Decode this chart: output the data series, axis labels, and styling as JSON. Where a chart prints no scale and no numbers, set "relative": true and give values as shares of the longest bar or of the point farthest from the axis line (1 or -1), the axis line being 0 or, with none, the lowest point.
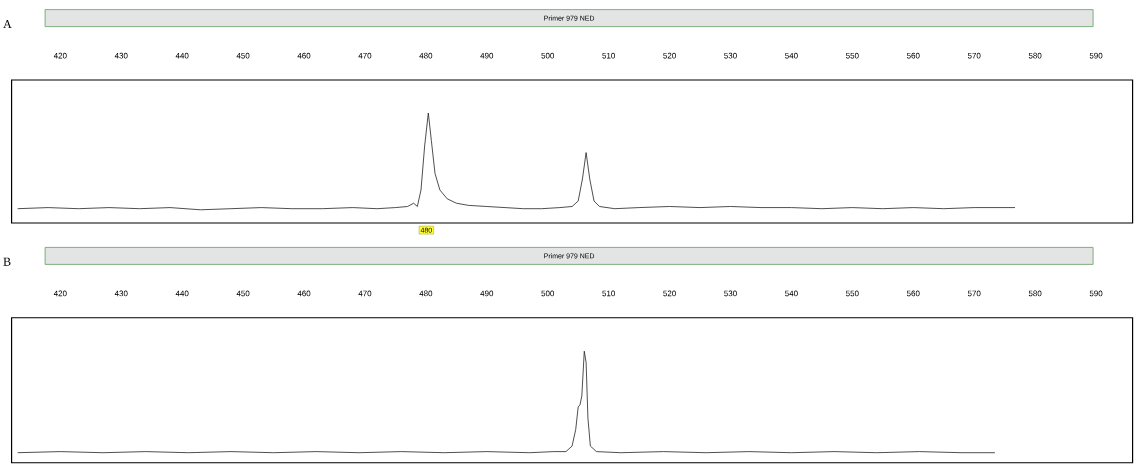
{
  "chart_data": [
    {
      "type": "line",
      "title": "Primer 979 NED",
      "relative": true,
      "xlim": [
        412,
        596
      ],
      "xticks": [
        420,
        430,
        440,
        450,
        460,
        470,
        480,
        490,
        500,
        510,
        520,
        530,
        540,
        550,
        560,
        570,
        580,
        590
      ],
      "annotations": [
        "A",
        "480"
      ],
      "series": [
        {
          "color": "#222222",
          "x": [
            413,
            418,
            423,
            428,
            433,
            438,
            443,
            448,
            453,
            458,
            463,
            468,
            472,
            475,
            477,
            478,
            478.6,
            479.2,
            479.8,
            480.4,
            480.9,
            481.5,
            482.3,
            483.5,
            485,
            487,
            490,
            493,
            496,
            499,
            502,
            504,
            505,
            505.7,
            506.3,
            506.9,
            507.6,
            508.5,
            511,
            515,
            520,
            525,
            530,
            535,
            540,
            545,
            550,
            555,
            560,
            565,
            570,
            576.7
          ],
          "values": [
            0.13,
            0.14,
            0.13,
            0.14,
            0.13,
            0.14,
            0.12,
            0.13,
            0.14,
            0.13,
            0.13,
            0.14,
            0.13,
            0.14,
            0.15,
            0.18,
            0.15,
            0.3,
            0.7,
            1.0,
            0.75,
            0.45,
            0.3,
            0.22,
            0.18,
            0.16,
            0.15,
            0.14,
            0.13,
            0.13,
            0.14,
            0.15,
            0.2,
            0.4,
            0.64,
            0.4,
            0.2,
            0.15,
            0.13,
            0.14,
            0.15,
            0.14,
            0.15,
            0.14,
            0.14,
            0.13,
            0.14,
            0.13,
            0.14,
            0.13,
            0.14,
            0.14
          ]
        }
      ]
    },
    {
      "type": "line",
      "title": "Primer 979 NED",
      "relative": true,
      "xlim": [
        412,
        596
      ],
      "xticks": [
        420,
        430,
        440,
        450,
        460,
        470,
        480,
        490,
        500,
        510,
        520,
        530,
        540,
        550,
        560,
        570,
        580,
        590
      ],
      "annotations": [
        "B"
      ],
      "series": [
        {
          "color": "#222222",
          "x": [
            413,
            420,
            427,
            434,
            441,
            448,
            455,
            462,
            469,
            476,
            483,
            490,
            497,
            501,
            503,
            504,
            504.6,
            505.0,
            505.3,
            505.6,
            506.0,
            506.3,
            506.6,
            507,
            508,
            512,
            519,
            526,
            533,
            540,
            547,
            554,
            561,
            568,
            573.4
          ],
          "values": [
            0.09,
            0.1,
            0.09,
            0.1,
            0.09,
            0.1,
            0.09,
            0.1,
            0.09,
            0.1,
            0.09,
            0.1,
            0.09,
            0.1,
            0.1,
            0.15,
            0.3,
            0.5,
            0.52,
            0.6,
            1.0,
            0.9,
            0.4,
            0.15,
            0.1,
            0.09,
            0.1,
            0.09,
            0.1,
            0.09,
            0.1,
            0.09,
            0.1,
            0.09,
            0.09
          ]
        }
      ]
    }
  ]
}
